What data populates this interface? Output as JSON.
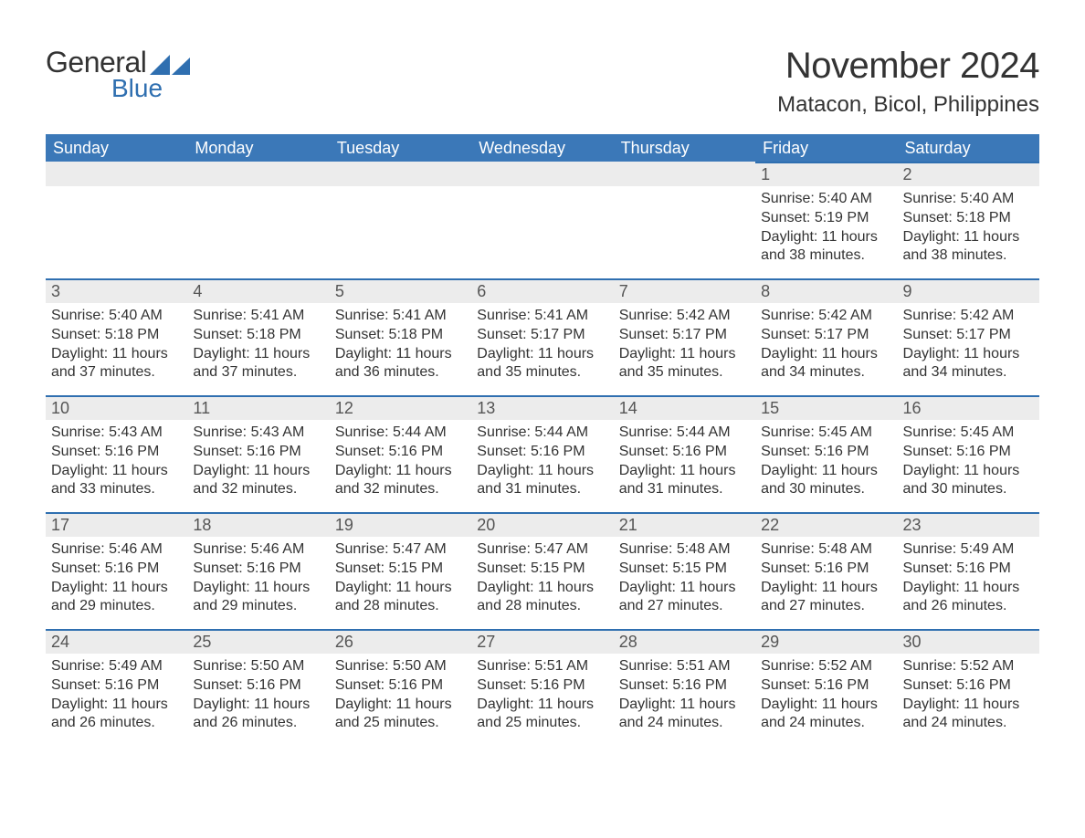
{
  "logo": {
    "text_general": "General",
    "text_blue": "Blue",
    "icon_color": "#2f6fb0"
  },
  "title": {
    "month": "November 2024",
    "location": "Matacon, Bicol, Philippines"
  },
  "colors": {
    "header_bg": "#3b78b8",
    "header_text": "#ffffff",
    "daynum_bg": "#ececec",
    "daynum_text": "#555555",
    "border_top": "#2f6fb0",
    "body_text": "#333333",
    "background": "#ffffff"
  },
  "typography": {
    "month_title_fontsize": 40,
    "location_fontsize": 24,
    "weekday_fontsize": 18,
    "daynum_fontsize": 18,
    "body_fontsize": 16
  },
  "weekdays": [
    "Sunday",
    "Monday",
    "Tuesday",
    "Wednesday",
    "Thursday",
    "Friday",
    "Saturday"
  ],
  "labels": {
    "sunrise": "Sunrise:",
    "sunset": "Sunset:",
    "daylight": "Daylight:"
  },
  "weeks": [
    [
      null,
      null,
      null,
      null,
      null,
      {
        "day": "1",
        "sunrise": "5:40 AM",
        "sunset": "5:19 PM",
        "daylight": "11 hours and 38 minutes."
      },
      {
        "day": "2",
        "sunrise": "5:40 AM",
        "sunset": "5:18 PM",
        "daylight": "11 hours and 38 minutes."
      }
    ],
    [
      {
        "day": "3",
        "sunrise": "5:40 AM",
        "sunset": "5:18 PM",
        "daylight": "11 hours and 37 minutes."
      },
      {
        "day": "4",
        "sunrise": "5:41 AM",
        "sunset": "5:18 PM",
        "daylight": "11 hours and 37 minutes."
      },
      {
        "day": "5",
        "sunrise": "5:41 AM",
        "sunset": "5:18 PM",
        "daylight": "11 hours and 36 minutes."
      },
      {
        "day": "6",
        "sunrise": "5:41 AM",
        "sunset": "5:17 PM",
        "daylight": "11 hours and 35 minutes."
      },
      {
        "day": "7",
        "sunrise": "5:42 AM",
        "sunset": "5:17 PM",
        "daylight": "11 hours and 35 minutes."
      },
      {
        "day": "8",
        "sunrise": "5:42 AM",
        "sunset": "5:17 PM",
        "daylight": "11 hours and 34 minutes."
      },
      {
        "day": "9",
        "sunrise": "5:42 AM",
        "sunset": "5:17 PM",
        "daylight": "11 hours and 34 minutes."
      }
    ],
    [
      {
        "day": "10",
        "sunrise": "5:43 AM",
        "sunset": "5:16 PM",
        "daylight": "11 hours and 33 minutes."
      },
      {
        "day": "11",
        "sunrise": "5:43 AM",
        "sunset": "5:16 PM",
        "daylight": "11 hours and 32 minutes."
      },
      {
        "day": "12",
        "sunrise": "5:44 AM",
        "sunset": "5:16 PM",
        "daylight": "11 hours and 32 minutes."
      },
      {
        "day": "13",
        "sunrise": "5:44 AM",
        "sunset": "5:16 PM",
        "daylight": "11 hours and 31 minutes."
      },
      {
        "day": "14",
        "sunrise": "5:44 AM",
        "sunset": "5:16 PM",
        "daylight": "11 hours and 31 minutes."
      },
      {
        "day": "15",
        "sunrise": "5:45 AM",
        "sunset": "5:16 PM",
        "daylight": "11 hours and 30 minutes."
      },
      {
        "day": "16",
        "sunrise": "5:45 AM",
        "sunset": "5:16 PM",
        "daylight": "11 hours and 30 minutes."
      }
    ],
    [
      {
        "day": "17",
        "sunrise": "5:46 AM",
        "sunset": "5:16 PM",
        "daylight": "11 hours and 29 minutes."
      },
      {
        "day": "18",
        "sunrise": "5:46 AM",
        "sunset": "5:16 PM",
        "daylight": "11 hours and 29 minutes."
      },
      {
        "day": "19",
        "sunrise": "5:47 AM",
        "sunset": "5:15 PM",
        "daylight": "11 hours and 28 minutes."
      },
      {
        "day": "20",
        "sunrise": "5:47 AM",
        "sunset": "5:15 PM",
        "daylight": "11 hours and 28 minutes."
      },
      {
        "day": "21",
        "sunrise": "5:48 AM",
        "sunset": "5:15 PM",
        "daylight": "11 hours and 27 minutes."
      },
      {
        "day": "22",
        "sunrise": "5:48 AM",
        "sunset": "5:16 PM",
        "daylight": "11 hours and 27 minutes."
      },
      {
        "day": "23",
        "sunrise": "5:49 AM",
        "sunset": "5:16 PM",
        "daylight": "11 hours and 26 minutes."
      }
    ],
    [
      {
        "day": "24",
        "sunrise": "5:49 AM",
        "sunset": "5:16 PM",
        "daylight": "11 hours and 26 minutes."
      },
      {
        "day": "25",
        "sunrise": "5:50 AM",
        "sunset": "5:16 PM",
        "daylight": "11 hours and 26 minutes."
      },
      {
        "day": "26",
        "sunrise": "5:50 AM",
        "sunset": "5:16 PM",
        "daylight": "11 hours and 25 minutes."
      },
      {
        "day": "27",
        "sunrise": "5:51 AM",
        "sunset": "5:16 PM",
        "daylight": "11 hours and 25 minutes."
      },
      {
        "day": "28",
        "sunrise": "5:51 AM",
        "sunset": "5:16 PM",
        "daylight": "11 hours and 24 minutes."
      },
      {
        "day": "29",
        "sunrise": "5:52 AM",
        "sunset": "5:16 PM",
        "daylight": "11 hours and 24 minutes."
      },
      {
        "day": "30",
        "sunrise": "5:52 AM",
        "sunset": "5:16 PM",
        "daylight": "11 hours and 24 minutes."
      }
    ]
  ]
}
